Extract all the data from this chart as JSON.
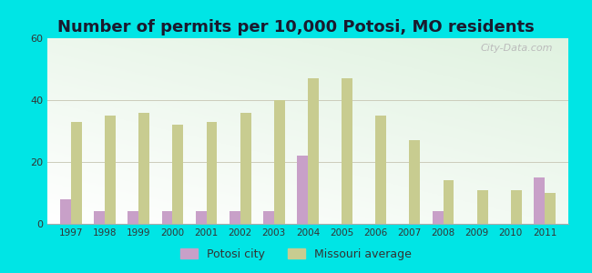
{
  "title": "Number of permits per 10,000 Potosi, MO residents",
  "years": [
    1997,
    1998,
    1999,
    2000,
    2001,
    2002,
    2003,
    2004,
    2005,
    2006,
    2007,
    2008,
    2009,
    2010,
    2011
  ],
  "potosi": [
    8,
    4,
    4,
    4,
    4,
    4,
    4,
    22,
    0,
    0,
    0,
    4,
    0,
    0,
    15
  ],
  "missouri": [
    33,
    35,
    36,
    32,
    33,
    36,
    40,
    47,
    47,
    35,
    27,
    14,
    11,
    11,
    10
  ],
  "potosi_color": "#c8a0c8",
  "missouri_color": "#c8cc90",
  "outer_background": "#00e5e5",
  "ylim": [
    0,
    60
  ],
  "yticks": [
    0,
    20,
    40,
    60
  ],
  "bar_width": 0.32,
  "legend_potosi": "Potosi city",
  "legend_missouri": "Missouri average",
  "title_fontsize": 13,
  "watermark_text": "City-Data.com"
}
